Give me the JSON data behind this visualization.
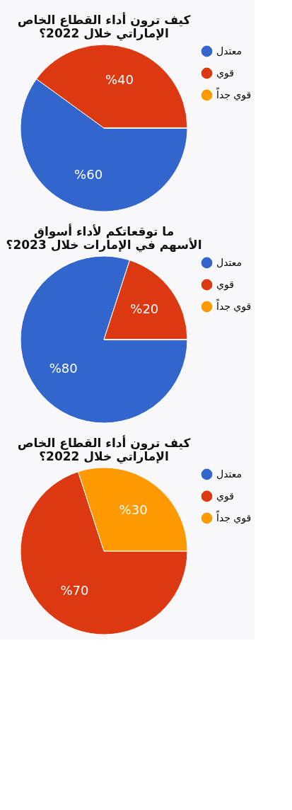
{
  "chart_data": [
    {
      "type": "pie",
      "title": "كيف ترون أداء القطاع الخاص\nالإماراتي خلال 2022؟",
      "categories": [
        "معتدل",
        "قوي",
        "قوي جداً"
      ],
      "values": [
        60,
        40,
        0
      ],
      "colors": [
        "#3366cc",
        "#dc3912",
        "#ff9900"
      ],
      "value_labels": [
        "%60",
        "%40",
        null
      ],
      "legend": "right"
    },
    {
      "type": "pie",
      "title": "ما توقعاتكم لأداء أسواق\nالأسهم في الإمارات خلال 2023؟",
      "categories": [
        "معتدل",
        "قوي",
        "قوي جداً"
      ],
      "values": [
        80,
        20,
        0
      ],
      "colors": [
        "#3366cc",
        "#dc3912",
        "#ff9900"
      ],
      "value_labels": [
        "%80",
        "%20",
        null
      ],
      "legend": "right"
    },
    {
      "type": "pie",
      "title": "كيف ترون أداء القطاع الخاص\nالإماراتي خلال 2022؟",
      "categories": [
        "معتدل",
        "قوي",
        "قوي جداً"
      ],
      "values": [
        0,
        70,
        30
      ],
      "colors": [
        "#3366cc",
        "#dc3912",
        "#ff9900"
      ],
      "value_labels": [
        null,
        "%70",
        "%30"
      ],
      "legend": "right"
    }
  ]
}
